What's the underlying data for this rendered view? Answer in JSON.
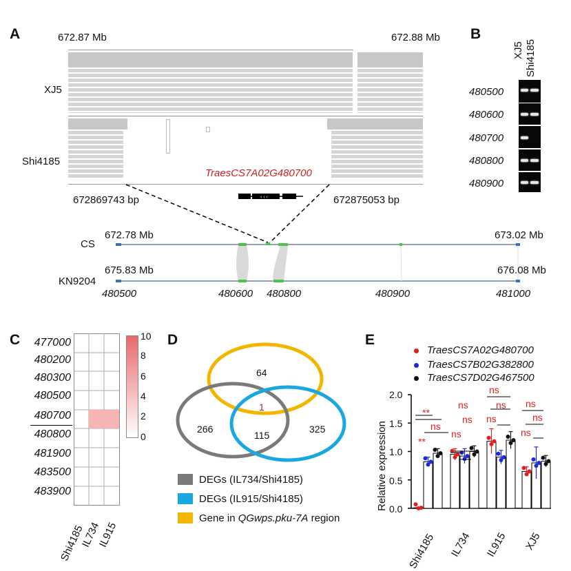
{
  "panelA": {
    "letter": "A",
    "coord_left": "672.87 Mb",
    "coord_right": "672.88 Mb",
    "track1": "XJ5",
    "track2": "Shi4185",
    "gene": "TraesCS7A02G480700",
    "bp_left": "672869743 bp",
    "bp_right": "672875053 bp",
    "cs_label": "CS",
    "kn_label": "KN9204",
    "cs_start": "672.78 Mb",
    "cs_end": "673.02 Mb",
    "kn_start": "675.83 Mb",
    "kn_end": "676.08 Mb",
    "gene_ticks": [
      "480500",
      "480600",
      "480800",
      "480900",
      "481000"
    ],
    "colors": {
      "gene_red": "#cc1f1f",
      "synteny_green": "#4fbf4f",
      "anchor_blue": "#3b6fb6"
    }
  },
  "panelB": {
    "letter": "B",
    "lanes": [
      "XJ5",
      "Shi4185"
    ],
    "rows": [
      "480500",
      "480600",
      "480700",
      "480800",
      "480900"
    ]
  },
  "panelC": {
    "letter": "C",
    "genes": [
      "477000",
      "480200",
      "480300",
      "480500",
      "480700",
      "480800",
      "481900",
      "483500",
      "483900"
    ],
    "samples": [
      "Shi4185",
      "IL734",
      "IL915"
    ],
    "highlight": {
      "gene": "480700",
      "samples": [
        "IL734",
        "IL915"
      ],
      "value": 2
    },
    "scale_ticks": [
      "10",
      "8",
      "6",
      "4",
      "2",
      "0"
    ],
    "scale_color": "#e8696b"
  },
  "panelD": {
    "letter": "D",
    "counts": {
      "yellow_only": "64",
      "gray_only": "266",
      "blue_only": "325",
      "gray_blue": "115",
      "all_three": "1"
    },
    "legend": [
      {
        "text": "DEGs (IL734/Shi4185)",
        "color": "#7a7a7a"
      },
      {
        "text": "DEGs (IL915/Shi4185)",
        "color": "#1aa7e0"
      },
      {
        "text_pre": "Gene in ",
        "text_ital": "QGwps.pku-7A",
        "text_post": " region",
        "color": "#f2b600"
      }
    ]
  },
  "panelE": {
    "letter": "E",
    "legend": [
      {
        "name": "TraesCS7A02G480700",
        "color": "#e02020"
      },
      {
        "name": "TraesCS7B02G382800",
        "color": "#1e2ad6"
      },
      {
        "name": "TraesCS7D02G467500",
        "color": "#111111"
      }
    ],
    "ylabel": "Relative expression",
    "yticks": [
      "0.0",
      "0.5",
      "1.0",
      "1.5",
      "2.0"
    ],
    "groups": [
      "Shi4185",
      "IL734",
      "IL915",
      "XJ5"
    ],
    "sig": [
      "**",
      "ns",
      "**",
      "ns",
      "ns",
      "ns",
      "ns",
      "ns",
      "ns",
      "ns",
      "ns",
      "ns"
    ],
    "chart_data": {
      "type": "bar",
      "categories": [
        "Shi4185",
        "IL734",
        "IL915",
        "XJ5"
      ],
      "series": [
        {
          "name": "TraesCS7A02G480700",
          "values": [
            0.01,
            0.95,
            1.18,
            0.65
          ],
          "errors": [
            0.01,
            0.1,
            0.22,
            0.08
          ]
        },
        {
          "name": "TraesCS7B02G382800",
          "values": [
            0.82,
            0.92,
            0.9,
            0.8
          ],
          "errors": [
            0.08,
            0.13,
            0.12,
            0.28
          ]
        },
        {
          "name": "TraesCS7D02G467500",
          "values": [
            0.97,
            1.0,
            1.2,
            0.83
          ],
          "errors": [
            0.08,
            0.1,
            0.15,
            0.1
          ]
        }
      ],
      "ylim": [
        0,
        2.0
      ],
      "ylabel": "Relative expression"
    }
  }
}
